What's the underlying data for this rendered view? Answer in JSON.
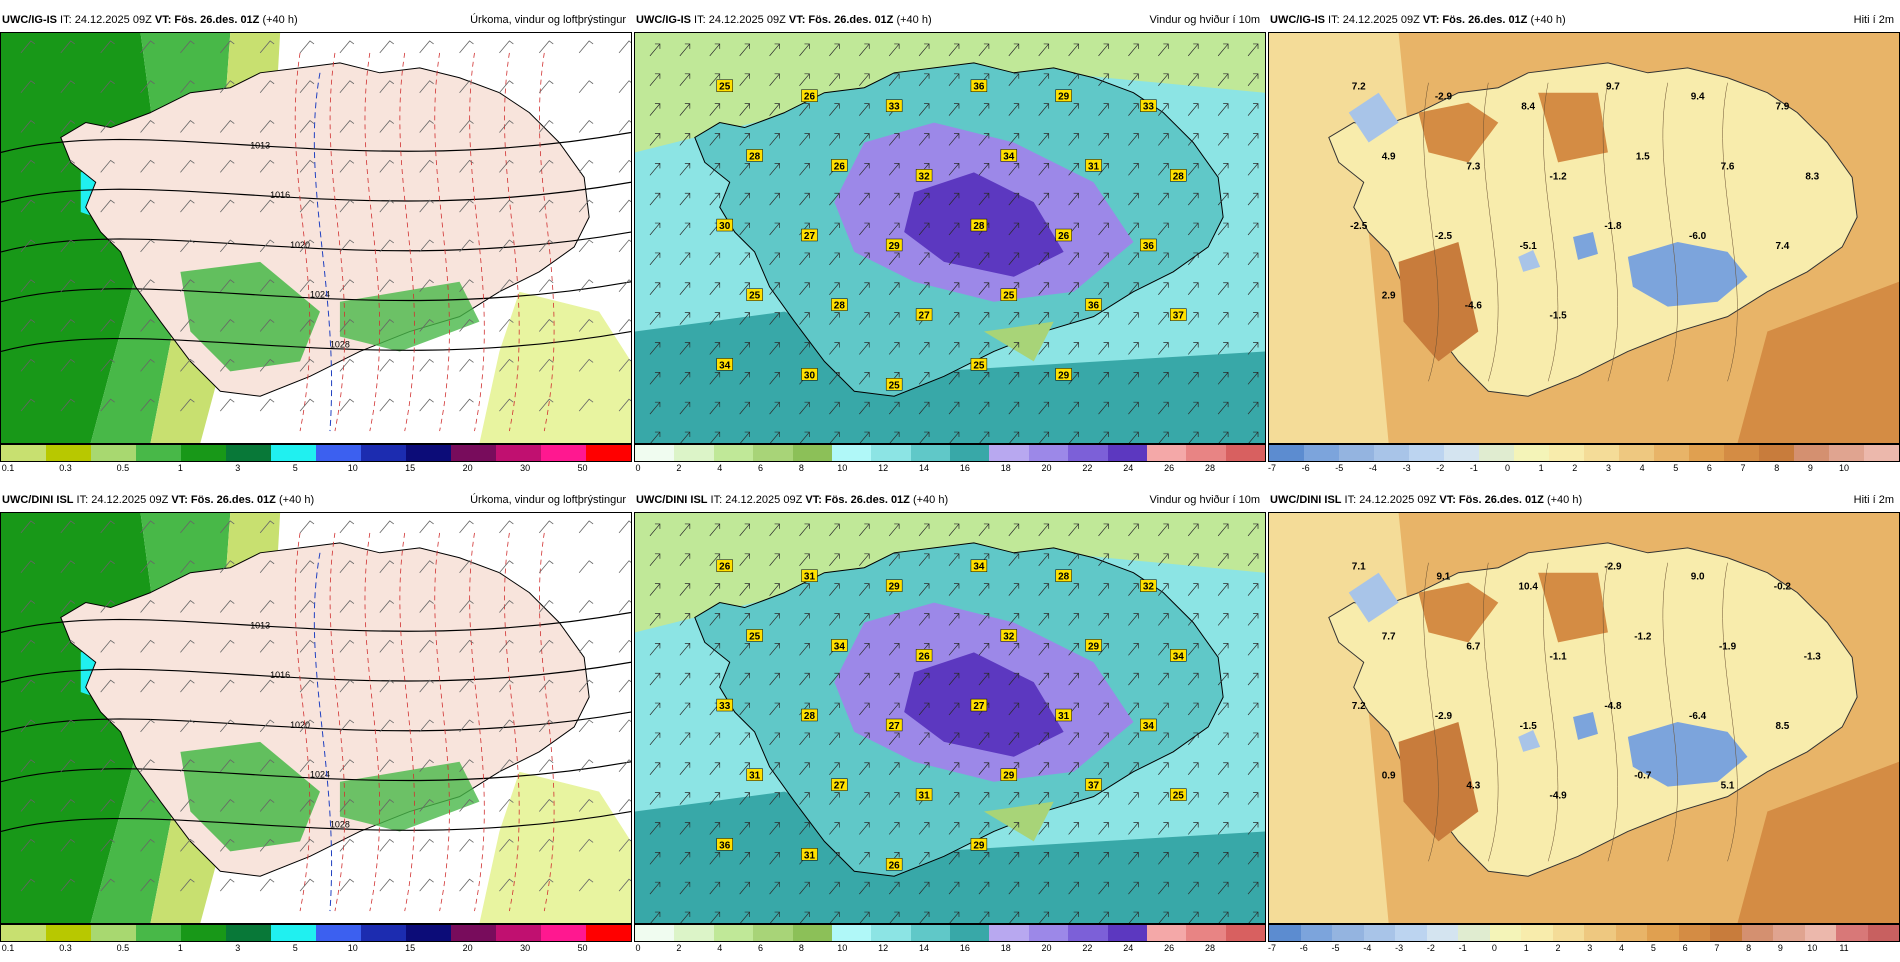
{
  "panels": [
    {
      "row": 0,
      "col": 0,
      "model": "UWC/IG-IS",
      "it": " IT: 24.12.2025 09Z ",
      "vt": "VT: Fös. 26.des. 01Z",
      "lead": " (+40 h)",
      "title": "Úrkoma, vindur og loftþrýstingur",
      "scale": "precip",
      "labels": [],
      "pressure": [
        "1013",
        "1016",
        "1020",
        "1024",
        "1028"
      ]
    },
    {
      "row": 0,
      "col": 1,
      "model": "UWC/IG-IS",
      "it": " IT: 24.12.2025 09Z ",
      "vt": "VT: Fös. 26.des. 01Z",
      "lead": " (+40 h)",
      "title": "Vindur og hviður í 10m",
      "scale": "wind",
      "labels": [
        "25",
        "26",
        "33",
        "36",
        "29",
        "33",
        "28",
        "26",
        "32",
        "34",
        "31",
        "28",
        "30",
        "27",
        "29",
        "28",
        "26",
        "36",
        "25",
        "28",
        "27",
        "25",
        "36",
        "37",
        "34",
        "30",
        "25",
        "25",
        "29"
      ]
    },
    {
      "row": 0,
      "col": 2,
      "model": "UWC/IG-IS",
      "it": " IT: 24.12.2025 09Z ",
      "vt": "VT: Fös. 26.des. 01Z",
      "lead": " (+40 h)",
      "title": "Hiti í 2m",
      "scale": "temp10",
      "labels": [
        "7.2",
        "-2.9",
        "8.4",
        "9.7",
        "9.4",
        "7.9",
        "4.9",
        "7.3",
        "-1.2",
        "1.5",
        "7.6",
        "8.3",
        "-2.5",
        "-2.5",
        "-5.1",
        "-1.8",
        "-6.0",
        "7.4",
        "2.9",
        "-4.6",
        "-1.5"
      ]
    },
    {
      "row": 1,
      "col": 0,
      "model": "UWC/DINI ISL",
      "it": " IT: 24.12.2025 09Z ",
      "vt": "VT: Fös. 26.des. 01Z",
      "lead": " (+40 h)",
      "title": "Úrkoma, vindur og loftþrýstingur",
      "scale": "precip",
      "labels": [],
      "pressure": [
        "1013",
        "1016",
        "1020",
        "1024",
        "1028"
      ]
    },
    {
      "row": 1,
      "col": 1,
      "model": "UWC/DINI ISL",
      "it": " IT: 24.12.2025 09Z ",
      "vt": "VT: Fös. 26.des. 01Z",
      "lead": " (+40 h)",
      "title": "Vindur og hviður í 10m",
      "scale": "wind",
      "labels": [
        "26",
        "31",
        "29",
        "34",
        "28",
        "32",
        "25",
        "34",
        "26",
        "32",
        "29",
        "34",
        "33",
        "28",
        "27",
        "27",
        "31",
        "34",
        "31",
        "27",
        "31",
        "29",
        "37",
        "25",
        "36",
        "31",
        "26",
        "29"
      ]
    },
    {
      "row": 1,
      "col": 2,
      "model": "UWC/DINI ISL",
      "it": " IT: 24.12.2025 09Z ",
      "vt": "VT: Fös. 26.des. 01Z",
      "lead": " (+40 h)",
      "title": "Hiti í 2m",
      "scale": "temp11",
      "labels": [
        "7.1",
        "9.1",
        "10.4",
        "-2.9",
        "9.0",
        "-0.2",
        "7.7",
        "6.7",
        "-1.1",
        "-1.2",
        "-1.9",
        "-1.3",
        "7.2",
        "-2.9",
        "-1.5",
        "-4.8",
        "-6.4",
        "8.5",
        "0.9",
        "4.3",
        "-4.9",
        "-0.7",
        "5.1"
      ]
    }
  ],
  "scales": {
    "precip": {
      "colors": [
        "#c8e070",
        "#b8c800",
        "#a8d870",
        "#48b848",
        "#189818",
        "#087838",
        "#20f0f0",
        "#3c60f0",
        "#1c2cb0",
        "#0c0c78",
        "#780c5c",
        "#c01070",
        "#ff1890",
        "#ff0000"
      ],
      "ticks": [
        "0.1",
        "0.3",
        "0.5",
        "1",
        "3",
        "5",
        "10",
        "15",
        "20",
        "30",
        "50"
      ]
    },
    "wind": {
      "colors": [
        "#f0fcf0",
        "#dcf4c8",
        "#c0e898",
        "#a8d478",
        "#8cc058",
        "#b0f8f8",
        "#8ce4e4",
        "#60c8c8",
        "#38a8a8",
        "#b8a8f0",
        "#9c88e8",
        "#7c60d8",
        "#5c38c0",
        "#f4a8a8",
        "#e88484",
        "#d86060"
      ],
      "ticks": [
        "0",
        "2",
        "4",
        "6",
        "8",
        "10",
        "12",
        "14",
        "16",
        "18",
        "20",
        "22",
        "24",
        "26",
        "28"
      ]
    },
    "temp10": {
      "colors": [
        "#5c8cd0",
        "#7ca4dc",
        "#94b4e0",
        "#a8c4e8",
        "#bcd4f0",
        "#d4e4f0",
        "#e0ecd0",
        "#f4f4b8",
        "#f8ecac",
        "#f4dc98",
        "#eec880",
        "#e8b468",
        "#e0a050",
        "#d48c44",
        "#c87c3c",
        "#d49070",
        "#e0a490",
        "#ecb8ac"
      ],
      "ticks": [
        "-7",
        "-6",
        "-5",
        "-4",
        "-3",
        "-2",
        "-1",
        "0",
        "1",
        "2",
        "3",
        "4",
        "5",
        "6",
        "7",
        "8",
        "9",
        "10"
      ]
    },
    "temp11": {
      "colors": [
        "#5c8cd0",
        "#7ca4dc",
        "#94b4e0",
        "#a8c4e8",
        "#bcd4f0",
        "#d4e4f0",
        "#e0ecd0",
        "#f4f4b8",
        "#f8ecac",
        "#f4dc98",
        "#eec880",
        "#e8b468",
        "#e0a050",
        "#d48c44",
        "#c87c3c",
        "#d49070",
        "#e0a490",
        "#ecb8ac",
        "#d87878",
        "#c86060"
      ],
      "ticks": [
        "-7",
        "-6",
        "-5",
        "-4",
        "-3",
        "-2",
        "-1",
        "0",
        "1",
        "2",
        "3",
        "4",
        "5",
        "6",
        "7",
        "8",
        "9",
        "10",
        "11"
      ]
    }
  }
}
